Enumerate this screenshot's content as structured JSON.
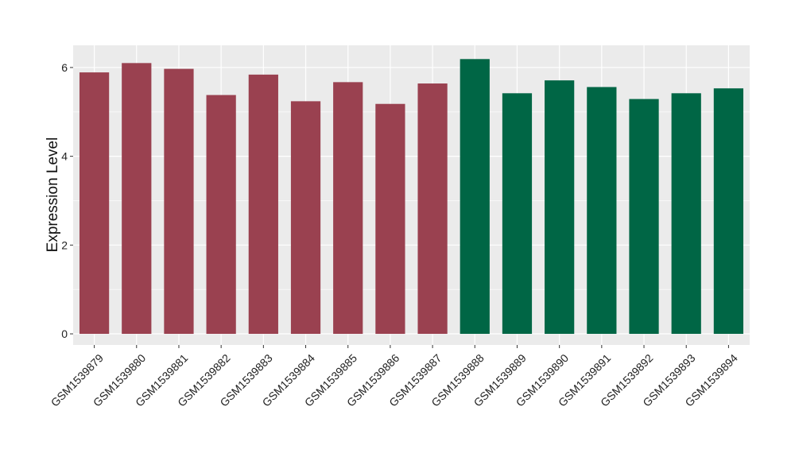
{
  "chart_data": {
    "type": "bar",
    "title": "",
    "xlabel": "",
    "ylabel": "Expression Level",
    "ylim": [
      -0.25,
      6.5
    ],
    "yticks": [
      0,
      2,
      4,
      6
    ],
    "grid": true,
    "legend": "none",
    "categories": [
      "GSM1539879",
      "GSM1539880",
      "GSM1539881",
      "GSM1539882",
      "GSM1539883",
      "GSM1539884",
      "GSM1539885",
      "GSM1539886",
      "GSM1539887",
      "GSM1539888",
      "GSM1539889",
      "GSM1539890",
      "GSM1539891",
      "GSM1539892",
      "GSM1539893",
      "GSM1539894"
    ],
    "values": [
      5.89,
      6.1,
      5.97,
      5.38,
      5.84,
      5.24,
      5.67,
      5.18,
      5.64,
      6.19,
      5.42,
      5.71,
      5.56,
      5.29,
      5.42,
      5.53
    ],
    "groups": [
      0,
      0,
      0,
      0,
      0,
      0,
      0,
      0,
      0,
      1,
      1,
      1,
      1,
      1,
      1,
      1
    ],
    "colors": {
      "group_a": "#9a4150",
      "group_b": "#006645",
      "panel": "#ebebeb",
      "grid": "#ffffff"
    }
  }
}
